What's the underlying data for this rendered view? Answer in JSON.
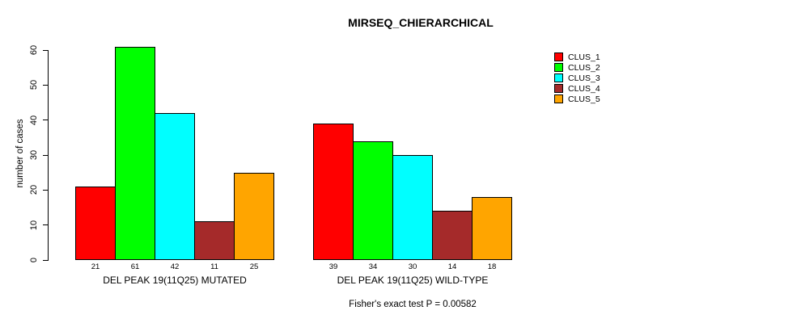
{
  "title": "MIRSEQ_CHIERARCHICAL",
  "footer": "Fisher's exact test P = 0.00582",
  "chart_data": {
    "type": "bar",
    "title": "MIRSEQ_CHIERARCHICAL",
    "xlabel": "",
    "ylabel": "number of cases",
    "ylim": [
      0,
      60
    ],
    "yticks": [
      0,
      10,
      20,
      30,
      40,
      50,
      60
    ],
    "grid": false,
    "legend_position": "right",
    "categories": [
      "DEL PEAK 19(11Q25) MUTATED",
      "DEL PEAK 19(11Q25) WILD-TYPE"
    ],
    "series": [
      {
        "name": "CLUS_1",
        "color": "#FF0000",
        "values": [
          21,
          39
        ]
      },
      {
        "name": "CLUS_2",
        "color": "#00FF00",
        "values": [
          61,
          34
        ]
      },
      {
        "name": "CLUS_3",
        "color": "#00FFFF",
        "values": [
          42,
          30
        ]
      },
      {
        "name": "CLUS_4",
        "color": "#A52A2A",
        "values": [
          11,
          14
        ]
      },
      {
        "name": "CLUS_5",
        "color": "#FFA500",
        "values": [
          25,
          18
        ]
      }
    ],
    "bar_value_labels": [
      [
        21,
        61,
        42,
        11,
        25
      ],
      [
        39,
        34,
        30,
        14,
        18
      ]
    ],
    "annotation": "Fisher's exact test P = 0.00582"
  }
}
